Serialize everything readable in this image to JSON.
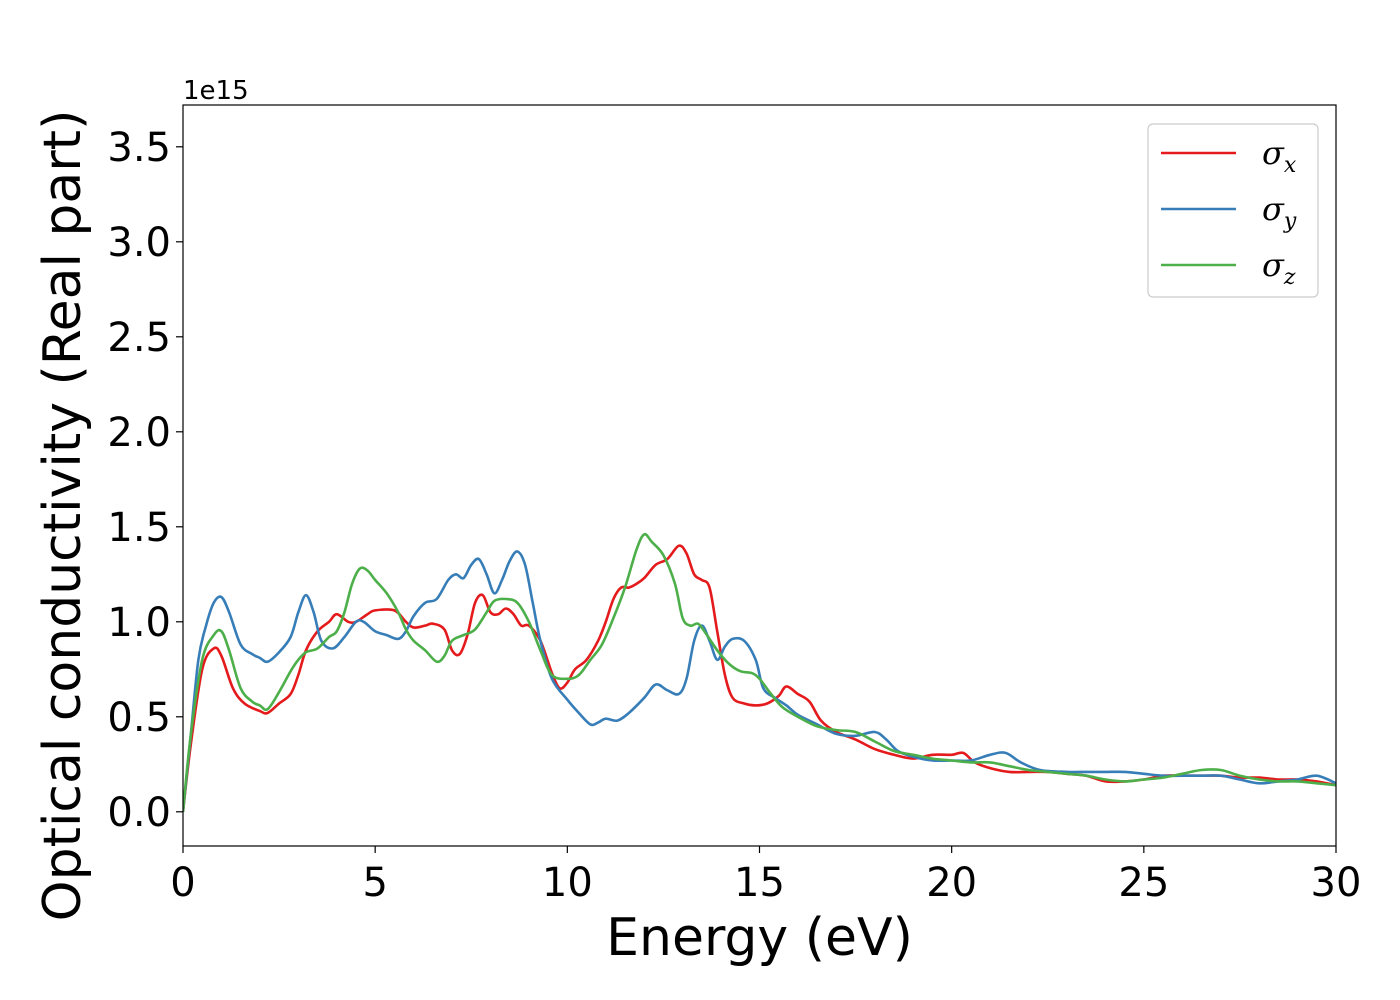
{
  "chart_data": {
    "type": "line",
    "xlabel": "Energy (eV)",
    "ylabel": "Optical conductivity (Real part)",
    "y_offset_label": "1e15",
    "xlim": [
      0,
      30
    ],
    "ylim": [
      -0.18,
      3.72
    ],
    "x_ticks": [
      0,
      5,
      10,
      15,
      20,
      25,
      30
    ],
    "x_tick_labels": [
      "0",
      "5",
      "10",
      "15",
      "20",
      "25",
      "30"
    ],
    "y_ticks": [
      0.0,
      0.5,
      1.0,
      1.5,
      2.0,
      2.5,
      3.0,
      3.5
    ],
    "y_tick_labels": [
      "0.0",
      "0.5",
      "1.0",
      "1.5",
      "2.0",
      "2.5",
      "3.0",
      "3.5"
    ],
    "grid": false,
    "legend_position": "top-right",
    "series": [
      {
        "name": "σx",
        "symbol": "σ",
        "subscript": "x",
        "color": "#e41a1c",
        "points": [
          [
            0,
            0.0
          ],
          [
            0.2,
            0.35
          ],
          [
            0.5,
            0.75
          ],
          [
            0.8,
            0.86
          ],
          [
            1.0,
            0.82
          ],
          [
            1.3,
            0.65
          ],
          [
            1.6,
            0.57
          ],
          [
            2.0,
            0.53
          ],
          [
            2.2,
            0.52
          ],
          [
            2.5,
            0.57
          ],
          [
            2.8,
            0.62
          ],
          [
            3.0,
            0.72
          ],
          [
            3.2,
            0.85
          ],
          [
            3.5,
            0.95
          ],
          [
            3.8,
            1.0
          ],
          [
            4.0,
            1.04
          ],
          [
            4.3,
            1.0
          ],
          [
            4.5,
            1.0
          ],
          [
            4.8,
            1.04
          ],
          [
            5.0,
            1.06
          ],
          [
            5.5,
            1.06
          ],
          [
            5.8,
            1.0
          ],
          [
            6.0,
            0.97
          ],
          [
            6.3,
            0.98
          ],
          [
            6.5,
            0.99
          ],
          [
            6.8,
            0.96
          ],
          [
            7.0,
            0.85
          ],
          [
            7.2,
            0.83
          ],
          [
            7.4,
            0.93
          ],
          [
            7.6,
            1.1
          ],
          [
            7.8,
            1.14
          ],
          [
            8.0,
            1.05
          ],
          [
            8.2,
            1.04
          ],
          [
            8.4,
            1.07
          ],
          [
            8.6,
            1.04
          ],
          [
            8.8,
            0.98
          ],
          [
            9.0,
            0.98
          ],
          [
            9.3,
            0.9
          ],
          [
            9.6,
            0.73
          ],
          [
            9.8,
            0.65
          ],
          [
            10.0,
            0.68
          ],
          [
            10.2,
            0.75
          ],
          [
            10.5,
            0.8
          ],
          [
            10.8,
            0.9
          ],
          [
            11.0,
            1.0
          ],
          [
            11.2,
            1.12
          ],
          [
            11.4,
            1.18
          ],
          [
            11.6,
            1.18
          ],
          [
            11.8,
            1.2
          ],
          [
            12.0,
            1.23
          ],
          [
            12.3,
            1.3
          ],
          [
            12.6,
            1.33
          ],
          [
            12.9,
            1.4
          ],
          [
            13.1,
            1.36
          ],
          [
            13.3,
            1.25
          ],
          [
            13.5,
            1.22
          ],
          [
            13.7,
            1.18
          ],
          [
            13.9,
            0.95
          ],
          [
            14.1,
            0.72
          ],
          [
            14.3,
            0.6
          ],
          [
            14.6,
            0.57
          ],
          [
            14.9,
            0.56
          ],
          [
            15.2,
            0.57
          ],
          [
            15.5,
            0.61
          ],
          [
            15.7,
            0.66
          ],
          [
            16.0,
            0.62
          ],
          [
            16.3,
            0.58
          ],
          [
            16.6,
            0.48
          ],
          [
            17.0,
            0.42
          ],
          [
            17.5,
            0.38
          ],
          [
            18.0,
            0.33
          ],
          [
            18.5,
            0.3
          ],
          [
            19.0,
            0.28
          ],
          [
            19.5,
            0.3
          ],
          [
            20.0,
            0.3
          ],
          [
            20.3,
            0.31
          ],
          [
            20.6,
            0.26
          ],
          [
            21.0,
            0.23
          ],
          [
            21.5,
            0.21
          ],
          [
            22.0,
            0.21
          ],
          [
            22.5,
            0.21
          ],
          [
            23.0,
            0.2
          ],
          [
            23.5,
            0.19
          ],
          [
            24.0,
            0.16
          ],
          [
            24.5,
            0.16
          ],
          [
            25.0,
            0.17
          ],
          [
            25.5,
            0.19
          ],
          [
            26.0,
            0.19
          ],
          [
            26.5,
            0.19
          ],
          [
            27.0,
            0.19
          ],
          [
            27.5,
            0.18
          ],
          [
            28.0,
            0.18
          ],
          [
            28.5,
            0.17
          ],
          [
            29.0,
            0.17
          ],
          [
            29.5,
            0.16
          ],
          [
            30.0,
            0.14
          ]
        ]
      },
      {
        "name": "σy",
        "symbol": "σ",
        "subscript": "y",
        "color": "#377eb8",
        "points": [
          [
            0,
            0.0
          ],
          [
            0.2,
            0.4
          ],
          [
            0.4,
            0.8
          ],
          [
            0.6,
            0.98
          ],
          [
            0.8,
            1.1
          ],
          [
            1.0,
            1.13
          ],
          [
            1.2,
            1.05
          ],
          [
            1.5,
            0.88
          ],
          [
            1.8,
            0.83
          ],
          [
            2.0,
            0.81
          ],
          [
            2.2,
            0.79
          ],
          [
            2.5,
            0.84
          ],
          [
            2.8,
            0.92
          ],
          [
            3.0,
            1.05
          ],
          [
            3.2,
            1.14
          ],
          [
            3.4,
            1.05
          ],
          [
            3.6,
            0.9
          ],
          [
            3.9,
            0.86
          ],
          [
            4.2,
            0.92
          ],
          [
            4.5,
            1.0
          ],
          [
            4.7,
            1.0
          ],
          [
            5.0,
            0.95
          ],
          [
            5.3,
            0.93
          ],
          [
            5.6,
            0.91
          ],
          [
            5.8,
            0.95
          ],
          [
            6.0,
            1.03
          ],
          [
            6.3,
            1.1
          ],
          [
            6.6,
            1.12
          ],
          [
            6.9,
            1.22
          ],
          [
            7.1,
            1.25
          ],
          [
            7.3,
            1.23
          ],
          [
            7.5,
            1.3
          ],
          [
            7.7,
            1.33
          ],
          [
            7.9,
            1.25
          ],
          [
            8.1,
            1.15
          ],
          [
            8.3,
            1.22
          ],
          [
            8.5,
            1.32
          ],
          [
            8.7,
            1.37
          ],
          [
            8.9,
            1.3
          ],
          [
            9.1,
            1.1
          ],
          [
            9.3,
            0.9
          ],
          [
            9.6,
            0.7
          ],
          [
            10.0,
            0.59
          ],
          [
            10.3,
            0.52
          ],
          [
            10.6,
            0.46
          ],
          [
            10.8,
            0.47
          ],
          [
            11.0,
            0.49
          ],
          [
            11.3,
            0.48
          ],
          [
            11.6,
            0.52
          ],
          [
            12.0,
            0.6
          ],
          [
            12.3,
            0.67
          ],
          [
            12.6,
            0.64
          ],
          [
            12.9,
            0.62
          ],
          [
            13.1,
            0.7
          ],
          [
            13.3,
            0.9
          ],
          [
            13.5,
            0.98
          ],
          [
            13.7,
            0.9
          ],
          [
            13.9,
            0.8
          ],
          [
            14.1,
            0.87
          ],
          [
            14.3,
            0.91
          ],
          [
            14.6,
            0.9
          ],
          [
            14.9,
            0.8
          ],
          [
            15.1,
            0.65
          ],
          [
            15.4,
            0.6
          ],
          [
            15.7,
            0.56
          ],
          [
            16.0,
            0.51
          ],
          [
            16.5,
            0.46
          ],
          [
            17.0,
            0.41
          ],
          [
            17.5,
            0.4
          ],
          [
            18.0,
            0.42
          ],
          [
            18.3,
            0.38
          ],
          [
            18.6,
            0.32
          ],
          [
            19.0,
            0.29
          ],
          [
            19.5,
            0.27
          ],
          [
            20.0,
            0.27
          ],
          [
            20.5,
            0.27
          ],
          [
            21.0,
            0.3
          ],
          [
            21.4,
            0.31
          ],
          [
            21.8,
            0.26
          ],
          [
            22.3,
            0.22
          ],
          [
            23.0,
            0.21
          ],
          [
            23.5,
            0.21
          ],
          [
            24.0,
            0.21
          ],
          [
            24.5,
            0.21
          ],
          [
            25.0,
            0.2
          ],
          [
            25.5,
            0.19
          ],
          [
            26.0,
            0.19
          ],
          [
            26.5,
            0.19
          ],
          [
            27.0,
            0.19
          ],
          [
            27.5,
            0.17
          ],
          [
            28.0,
            0.15
          ],
          [
            28.5,
            0.16
          ],
          [
            29.0,
            0.17
          ],
          [
            29.5,
            0.19
          ],
          [
            30.0,
            0.15
          ]
        ]
      },
      {
        "name": "σz",
        "symbol": "σ",
        "subscript": "z",
        "color": "#4daf4a",
        "points": [
          [
            0,
            0.0
          ],
          [
            0.2,
            0.4
          ],
          [
            0.5,
            0.8
          ],
          [
            0.8,
            0.93
          ],
          [
            1.0,
            0.95
          ],
          [
            1.2,
            0.85
          ],
          [
            1.5,
            0.65
          ],
          [
            1.8,
            0.58
          ],
          [
            2.0,
            0.56
          ],
          [
            2.2,
            0.54
          ],
          [
            2.5,
            0.63
          ],
          [
            2.8,
            0.74
          ],
          [
            3.0,
            0.8
          ],
          [
            3.2,
            0.84
          ],
          [
            3.5,
            0.86
          ],
          [
            3.8,
            0.92
          ],
          [
            4.0,
            0.95
          ],
          [
            4.2,
            1.05
          ],
          [
            4.4,
            1.2
          ],
          [
            4.6,
            1.28
          ],
          [
            4.8,
            1.27
          ],
          [
            5.0,
            1.22
          ],
          [
            5.3,
            1.15
          ],
          [
            5.6,
            1.05
          ],
          [
            5.8,
            0.96
          ],
          [
            6.0,
            0.9
          ],
          [
            6.3,
            0.85
          ],
          [
            6.6,
            0.79
          ],
          [
            6.8,
            0.82
          ],
          [
            7.0,
            0.9
          ],
          [
            7.3,
            0.93
          ],
          [
            7.6,
            0.96
          ],
          [
            7.9,
            1.05
          ],
          [
            8.1,
            1.11
          ],
          [
            8.4,
            1.12
          ],
          [
            8.7,
            1.1
          ],
          [
            9.0,
            1.0
          ],
          [
            9.3,
            0.85
          ],
          [
            9.6,
            0.72
          ],
          [
            10.0,
            0.7
          ],
          [
            10.3,
            0.72
          ],
          [
            10.6,
            0.8
          ],
          [
            10.9,
            0.88
          ],
          [
            11.2,
            1.02
          ],
          [
            11.5,
            1.18
          ],
          [
            11.8,
            1.38
          ],
          [
            12.0,
            1.46
          ],
          [
            12.2,
            1.42
          ],
          [
            12.5,
            1.35
          ],
          [
            12.8,
            1.2
          ],
          [
            13.0,
            1.02
          ],
          [
            13.2,
            0.98
          ],
          [
            13.4,
            0.99
          ],
          [
            13.6,
            0.94
          ],
          [
            13.9,
            0.85
          ],
          [
            14.2,
            0.78
          ],
          [
            14.5,
            0.74
          ],
          [
            14.8,
            0.73
          ],
          [
            15.0,
            0.7
          ],
          [
            15.3,
            0.62
          ],
          [
            15.6,
            0.55
          ],
          [
            16.0,
            0.5
          ],
          [
            16.5,
            0.45
          ],
          [
            17.0,
            0.43
          ],
          [
            17.5,
            0.42
          ],
          [
            18.0,
            0.37
          ],
          [
            18.5,
            0.32
          ],
          [
            19.0,
            0.3
          ],
          [
            19.5,
            0.28
          ],
          [
            20.0,
            0.27
          ],
          [
            20.5,
            0.26
          ],
          [
            21.0,
            0.26
          ],
          [
            21.5,
            0.24
          ],
          [
            22.0,
            0.22
          ],
          [
            22.5,
            0.21
          ],
          [
            23.0,
            0.2
          ],
          [
            23.5,
            0.19
          ],
          [
            24.0,
            0.17
          ],
          [
            24.5,
            0.16
          ],
          [
            25.0,
            0.17
          ],
          [
            25.5,
            0.18
          ],
          [
            26.0,
            0.2
          ],
          [
            26.5,
            0.22
          ],
          [
            27.0,
            0.22
          ],
          [
            27.5,
            0.19
          ],
          [
            28.0,
            0.17
          ],
          [
            28.5,
            0.16
          ],
          [
            29.0,
            0.16
          ],
          [
            29.5,
            0.15
          ],
          [
            30.0,
            0.14
          ]
        ]
      }
    ]
  }
}
